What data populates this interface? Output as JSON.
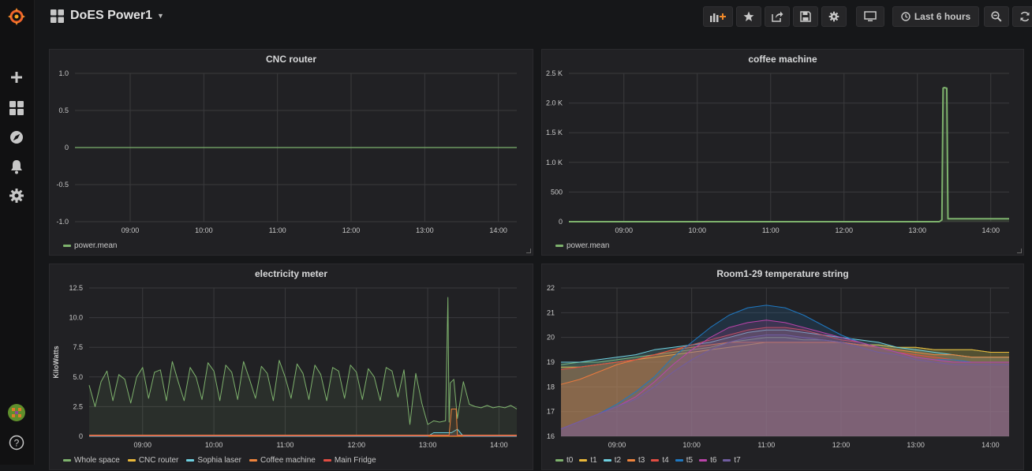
{
  "dashboard": {
    "title": "DoES Power1"
  },
  "toolbar": {
    "time_range": "Last 6 hours",
    "buttons": [
      "add-panel-icon",
      "star-icon",
      "share-icon",
      "save-icon",
      "settings-icon",
      "tv-mode-icon",
      "clock-icon",
      "zoom-out-icon",
      "refresh-icon"
    ]
  },
  "sidemenu": {
    "items": [
      "grafana-logo",
      "plus-icon",
      "dashboards-icon",
      "explore-icon",
      "bell-icon",
      "gear-icon",
      "user-avatar",
      "help-icon"
    ]
  },
  "panels": {
    "cnc": {
      "title": "CNC router",
      "legend": [
        "power.mean"
      ]
    },
    "coffee": {
      "title": "coffee machine",
      "legend": [
        "power.mean"
      ]
    },
    "elec": {
      "title": "electricity meter",
      "ylabel": "KiloWatts",
      "legend": [
        "Whole space",
        "CNC router",
        "Sophia laser",
        "Coffee machine",
        "Main Fridge"
      ]
    },
    "room": {
      "title": "Room1-29 temperature string",
      "legend": [
        "t0",
        "t1",
        "t2",
        "t3",
        "t4",
        "t5",
        "t6",
        "t7"
      ]
    }
  },
  "colors": {
    "green": "#7eb26d",
    "yellow": "#eab839",
    "cyan": "#6ed0e0",
    "orange": "#ef843c",
    "red": "#e24d42",
    "blue": "#1f78c1",
    "magenta": "#ba43a9",
    "purple": "#705da0"
  },
  "chart_data": [
    {
      "type": "line",
      "title": "CNC router",
      "x_ticks": [
        "09:00",
        "10:00",
        "11:00",
        "12:00",
        "13:00",
        "14:00"
      ],
      "y_ticks": [
        "1.0",
        "0.5",
        "0",
        "-0.5",
        "-1.0"
      ],
      "ylim": [
        -1,
        1
      ],
      "series": [
        {
          "name": "power.mean",
          "x": [
            "08:15",
            "14:15"
          ],
          "y": [
            0,
            0
          ]
        }
      ]
    },
    {
      "type": "line",
      "title": "coffee machine",
      "x_ticks": [
        "09:00",
        "10:00",
        "11:00",
        "12:00",
        "13:00",
        "14:00"
      ],
      "y_ticks": [
        "2.5 K",
        "2.0 K",
        "1.5 K",
        "1.0 K",
        "500",
        "0"
      ],
      "ylim": [
        0,
        2500
      ],
      "series": [
        {
          "name": "power.mean",
          "x": [
            "08:15",
            "13:18",
            "13:20",
            "13:21",
            "13:22",
            "13:24",
            "13:25",
            "14:15"
          ],
          "y": [
            0,
            0,
            30,
            2250,
            2260,
            2250,
            50,
            50
          ]
        }
      ]
    },
    {
      "type": "area",
      "title": "electricity meter",
      "ylabel": "KiloWatts",
      "x_ticks": [
        "09:00",
        "10:00",
        "11:00",
        "12:00",
        "13:00",
        "14:00"
      ],
      "y_ticks": [
        "12.5",
        "10.0",
        "7.5",
        "5.0",
        "2.5",
        "0"
      ],
      "ylim": [
        0,
        12.5
      ],
      "series": [
        {
          "name": "Whole space",
          "x": [
            "08:15",
            "08:20",
            "08:25",
            "08:30",
            "08:35",
            "08:40",
            "08:45",
            "08:50",
            "08:55",
            "09:00",
            "09:05",
            "09:10",
            "09:15",
            "09:20",
            "09:25",
            "09:30",
            "09:35",
            "09:40",
            "09:45",
            "09:50",
            "09:55",
            "10:00",
            "10:05",
            "10:10",
            "10:15",
            "10:20",
            "10:25",
            "10:30",
            "10:35",
            "10:40",
            "10:45",
            "10:50",
            "10:55",
            "11:00",
            "11:05",
            "11:10",
            "11:15",
            "11:20",
            "11:25",
            "11:30",
            "11:35",
            "11:40",
            "11:45",
            "11:50",
            "11:55",
            "12:00",
            "12:05",
            "12:10",
            "12:15",
            "12:20",
            "12:25",
            "12:30",
            "12:35",
            "12:40",
            "12:45",
            "12:50",
            "12:55",
            "13:00",
            "13:05",
            "13:10",
            "13:15",
            "13:17",
            "13:18",
            "13:19",
            "13:22",
            "13:25",
            "13:30",
            "13:35",
            "13:40",
            "13:45",
            "13:50",
            "13:55",
            "14:00",
            "14:05",
            "14:10",
            "14:15"
          ],
          "y": [
            4.3,
            2.5,
            4.6,
            5.5,
            3.0,
            5.2,
            4.8,
            2.8,
            5.0,
            5.8,
            3.2,
            5.4,
            5.6,
            3.0,
            6.3,
            4.6,
            3.0,
            5.8,
            5.0,
            3.1,
            6.2,
            5.5,
            3.0,
            6.0,
            5.4,
            3.1,
            6.3,
            4.8,
            3.2,
            5.9,
            5.3,
            3.0,
            6.4,
            5.0,
            3.2,
            6.1,
            5.3,
            3.1,
            6.0,
            5.2,
            3.0,
            5.8,
            5.5,
            3.2,
            6.0,
            5.4,
            3.1,
            5.7,
            5.0,
            3.0,
            5.8,
            5.5,
            3.3,
            5.6,
            1.0,
            5.3,
            2.8,
            1.0,
            1.3,
            1.2,
            1.3,
            11.7,
            1.2,
            4.5,
            4.8,
            1.5,
            4.6,
            2.7,
            2.5,
            2.4,
            2.6,
            2.4,
            2.5,
            2.4,
            2.6,
            2.3
          ]
        },
        {
          "name": "CNC router",
          "x": [
            "08:15",
            "14:15"
          ],
          "y": [
            0,
            0
          ]
        },
        {
          "name": "Sophia laser",
          "x": [
            "08:15",
            "13:00",
            "13:05",
            "13:20",
            "13:25",
            "13:30",
            "14:15"
          ],
          "y": [
            0,
            0,
            0.3,
            0.3,
            0.6,
            0,
            0
          ]
        },
        {
          "name": "Coffee machine",
          "x": [
            "08:15",
            "13:18",
            "13:20",
            "13:24",
            "13:25",
            "14:15"
          ],
          "y": [
            0.1,
            0.1,
            2.3,
            2.3,
            0.1,
            0.1
          ]
        },
        {
          "name": "Main Fridge",
          "x": [
            "08:15",
            "14:15"
          ],
          "y": [
            0.05,
            0.05
          ]
        }
      ]
    },
    {
      "type": "area",
      "title": "Room1-29 temperature string",
      "x_ticks": [
        "09:00",
        "10:00",
        "11:00",
        "12:00",
        "13:00",
        "14:00"
      ],
      "y_ticks": [
        "22",
        "21",
        "20",
        "19",
        "18",
        "17",
        "16"
      ],
      "ylim": [
        16,
        22
      ],
      "x": [
        "08:15",
        "08:30",
        "08:45",
        "09:00",
        "09:15",
        "09:30",
        "09:45",
        "10:00",
        "10:15",
        "10:30",
        "10:45",
        "11:00",
        "11:15",
        "11:30",
        "11:45",
        "12:00",
        "12:15",
        "12:30",
        "12:45",
        "13:00",
        "13:15",
        "13:30",
        "13:45",
        "14:00",
        "14:15"
      ],
      "series": [
        {
          "name": "t0",
          "values": [
            18.9,
            19.0,
            19.0,
            19.1,
            19.2,
            19.3,
            19.4,
            19.5,
            19.6,
            19.8,
            19.9,
            20.0,
            20.0,
            19.9,
            19.9,
            19.8,
            19.7,
            19.7,
            19.6,
            19.6,
            19.5,
            19.5,
            19.5,
            19.4,
            19.4
          ]
        },
        {
          "name": "t1",
          "values": [
            18.8,
            18.8,
            18.9,
            19.0,
            19.1,
            19.2,
            19.3,
            19.4,
            19.5,
            19.6,
            19.7,
            19.8,
            19.8,
            19.8,
            19.8,
            19.8,
            19.7,
            19.7,
            19.6,
            19.6,
            19.5,
            19.5,
            19.5,
            19.4,
            19.4
          ]
        },
        {
          "name": "t2",
          "values": [
            19.0,
            19.0,
            19.1,
            19.2,
            19.3,
            19.5,
            19.6,
            19.7,
            19.8,
            20.0,
            20.2,
            20.3,
            20.3,
            20.2,
            20.1,
            20.0,
            19.9,
            19.8,
            19.6,
            19.5,
            19.4,
            19.3,
            19.2,
            19.2,
            19.2
          ]
        },
        {
          "name": "t3",
          "values": [
            18.1,
            18.3,
            18.6,
            18.9,
            19.1,
            19.3,
            19.5,
            19.6,
            19.7,
            19.8,
            19.8,
            19.8,
            19.8,
            19.8,
            19.8,
            19.8,
            19.7,
            19.6,
            19.5,
            19.4,
            19.3,
            19.3,
            19.2,
            19.2,
            19.2
          ]
        },
        {
          "name": "t4",
          "values": [
            18.7,
            18.8,
            18.9,
            19.0,
            19.1,
            19.3,
            19.5,
            19.7,
            19.9,
            20.1,
            20.3,
            20.4,
            20.4,
            20.3,
            20.1,
            19.9,
            19.8,
            19.6,
            19.4,
            19.3,
            19.2,
            19.1,
            19.0,
            19.0,
            19.0
          ]
        },
        {
          "name": "t5",
          "values": [
            16.3,
            16.6,
            16.9,
            17.3,
            17.8,
            18.4,
            19.2,
            19.8,
            20.4,
            20.9,
            21.2,
            21.3,
            21.2,
            20.9,
            20.5,
            20.1,
            19.8,
            19.6,
            19.4,
            19.2,
            19.1,
            19.1,
            19.0,
            19.0,
            19.0
          ]
        },
        {
          "name": "t6",
          "values": [
            16.3,
            16.6,
            16.9,
            17.2,
            17.6,
            18.2,
            18.9,
            19.5,
            20.0,
            20.4,
            20.6,
            20.7,
            20.6,
            20.4,
            20.2,
            20.0,
            19.8,
            19.6,
            19.4,
            19.2,
            19.1,
            19.0,
            19.0,
            19.0,
            19.0
          ]
        },
        {
          "name": "t7",
          "values": [
            16.3,
            16.6,
            16.9,
            17.2,
            17.5,
            18.0,
            18.6,
            19.1,
            19.5,
            19.8,
            20.0,
            20.1,
            20.1,
            20.0,
            19.9,
            19.8,
            19.6,
            19.4,
            19.3,
            19.1,
            19.0,
            18.9,
            18.9,
            18.9,
            18.9
          ]
        }
      ]
    }
  ]
}
